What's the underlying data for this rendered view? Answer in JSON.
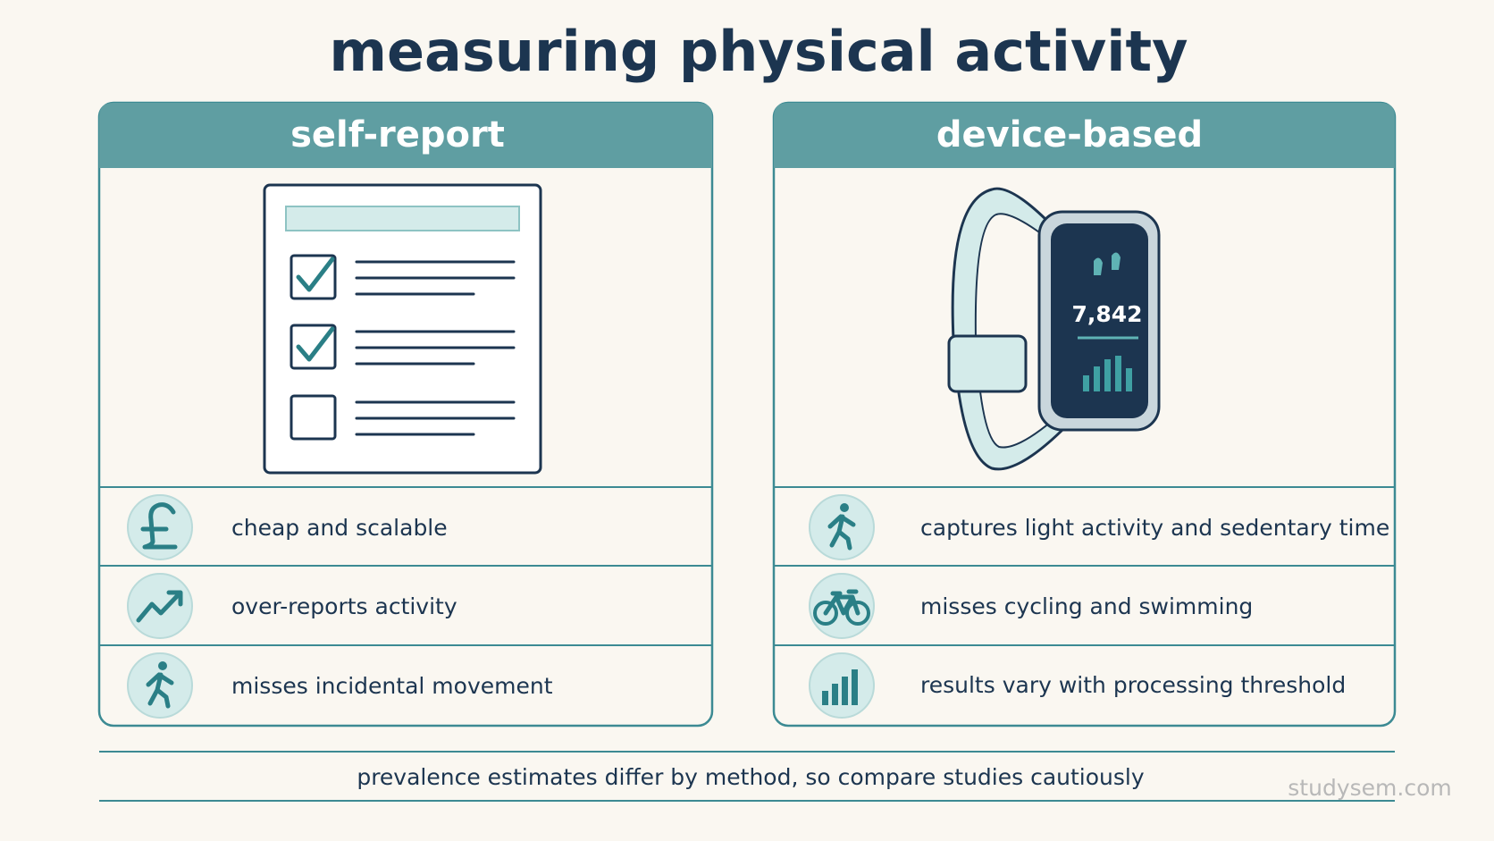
{
  "title": "measuring physical activity",
  "panels": [
    {
      "header": "self-report",
      "items": [
        "cheap and scalable",
        "over-reports activity",
        "misses incidental movement"
      ]
    },
    {
      "header": "device-based",
      "device_display": "7,842",
      "items": [
        "captures light activity and sedentary time",
        "misses cycling and swimming",
        "results vary with processing threshold"
      ]
    }
  ],
  "footer": "prevalence estimates differ by method, so compare studies cautiously",
  "watermark": "studysem.com"
}
